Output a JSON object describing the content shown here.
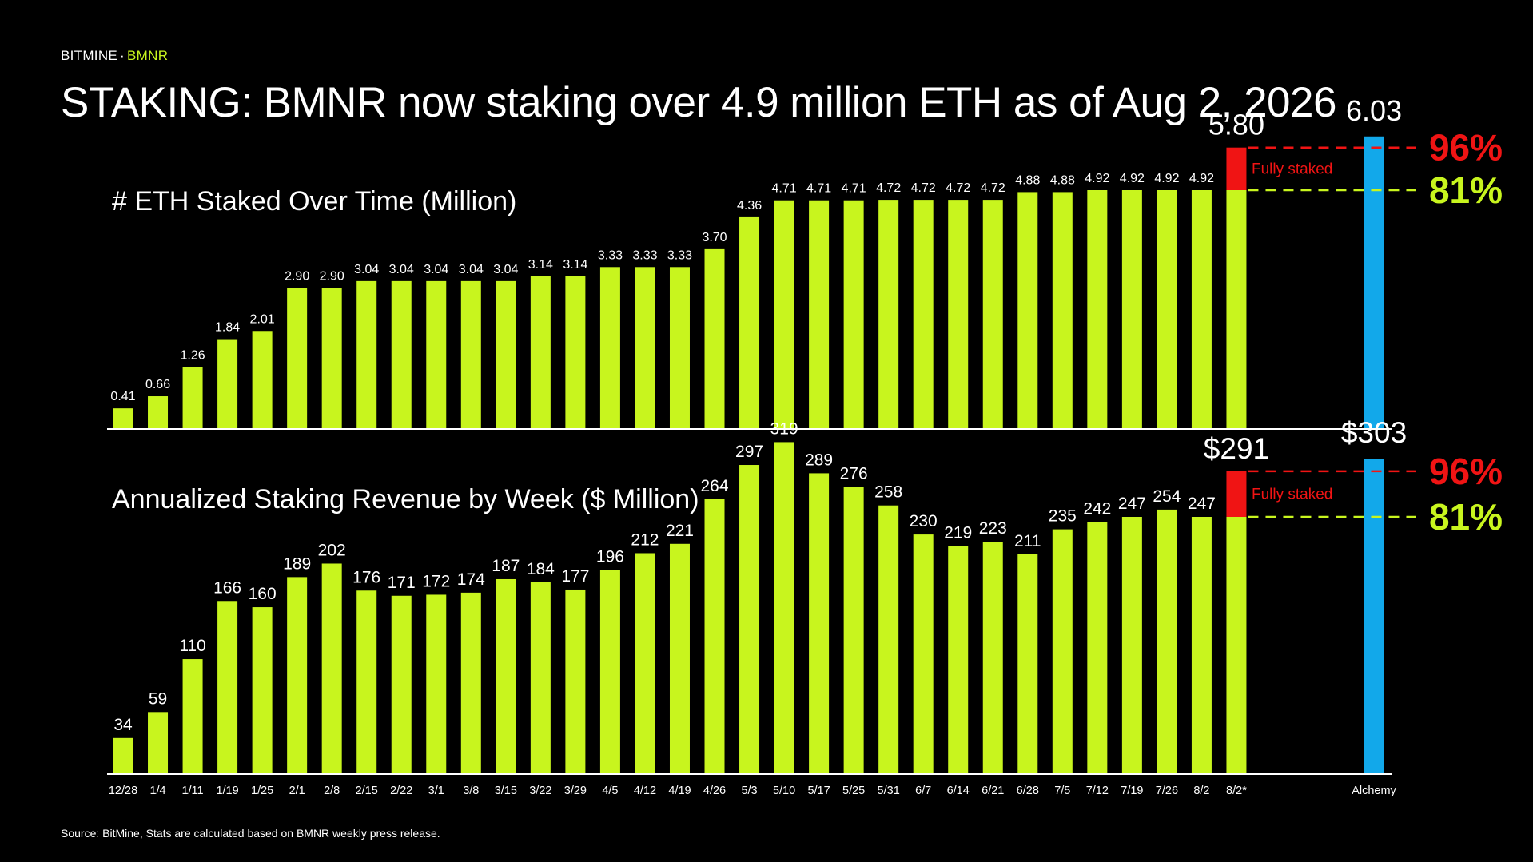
{
  "header": {
    "brand": "BITMINE",
    "separator": "·",
    "ticker": "BMNR",
    "title": "STAKING: BMNR now staking over 4.9 million ETH as of Aug 2, 2026"
  },
  "footer": {
    "source": "Source: BitMine, Stats are calculated based on BMNR weekly press release."
  },
  "colors": {
    "bar": "#c8f51e",
    "fully_staked": "#f01414",
    "alchemy": "#12a8ea",
    "text": "#ffffff",
    "background": "#000000"
  },
  "chart_data": [
    {
      "type": "bar",
      "title": "# ETH Staked Over Time (Million)",
      "categories": [
        "12/28",
        "1/4",
        "1/11",
        "1/19",
        "1/25",
        "2/1",
        "2/8",
        "2/15",
        "2/22",
        "3/1",
        "3/8",
        "3/15",
        "3/22",
        "3/29",
        "4/5",
        "4/12",
        "4/19",
        "4/26",
        "5/3",
        "5/10",
        "5/17",
        "5/25",
        "5/31",
        "6/7",
        "6/14",
        "6/21",
        "6/28",
        "7/5",
        "7/12",
        "7/19",
        "7/26",
        "8/2",
        "8/2*"
      ],
      "values": [
        0.41,
        0.66,
        1.26,
        1.84,
        2.01,
        2.9,
        2.9,
        3.04,
        3.04,
        3.04,
        3.04,
        3.04,
        3.14,
        3.14,
        3.33,
        3.33,
        3.33,
        3.7,
        4.36,
        4.71,
        4.71,
        4.71,
        4.72,
        4.72,
        4.72,
        4.72,
        4.88,
        4.88,
        4.92,
        4.92,
        4.92,
        4.92,
        4.92
      ],
      "labels": [
        "0.41",
        "0.66",
        "1.26",
        "1.84",
        "2.01",
        "2.90",
        "2.90",
        "3.04",
        "3.04",
        "3.04",
        "3.04",
        "3.04",
        "3.14",
        "3.14",
        "3.33",
        "3.33",
        "3.33",
        "3.70",
        "4.36",
        "4.71",
        "4.71",
        "4.71",
        "4.72",
        "4.72",
        "4.72",
        "4.72",
        "4.88",
        "4.88",
        "4.92",
        "4.92",
        "4.92",
        "4.92",
        ""
      ],
      "fully_staked": {
        "total": 5.8,
        "total_label": "5.80",
        "label": "Fully staked"
      },
      "alchemy": {
        "category": "Alchemy",
        "value": 6.03,
        "label": "6.03"
      },
      "reference_lines": [
        {
          "label": "96%",
          "value": 5.8,
          "color": "#f01414"
        },
        {
          "label": "81%",
          "value": 4.92,
          "color": "#c8f51e"
        }
      ],
      "ylim": [
        0,
        6.5
      ]
    },
    {
      "type": "bar",
      "title": "Annualized Staking Revenue by Week ($ Million)",
      "categories": [
        "12/28",
        "1/4",
        "1/11",
        "1/19",
        "1/25",
        "2/1",
        "2/8",
        "2/15",
        "2/22",
        "3/1",
        "3/8",
        "3/15",
        "3/22",
        "3/29",
        "4/5",
        "4/12",
        "4/19",
        "4/26",
        "5/3",
        "5/10",
        "5/17",
        "5/25",
        "5/31",
        "6/7",
        "6/14",
        "6/21",
        "6/28",
        "7/5",
        "7/12",
        "7/19",
        "7/26",
        "8/2",
        "8/2*"
      ],
      "values": [
        34,
        59,
        110,
        166,
        160,
        189,
        202,
        176,
        171,
        172,
        174,
        187,
        184,
        177,
        196,
        212,
        221,
        264,
        297,
        319,
        289,
        276,
        258,
        230,
        219,
        223,
        211,
        235,
        242,
        247,
        254,
        247,
        247
      ],
      "labels": [
        "34",
        "59",
        "110",
        "166",
        "160",
        "189",
        "202",
        "176",
        "171",
        "172",
        "174",
        "187",
        "184",
        "177",
        "196",
        "212",
        "221",
        "264",
        "297",
        "319",
        "289",
        "276",
        "258",
        "230",
        "219",
        "223",
        "211",
        "235",
        "242",
        "247",
        "254",
        "247",
        ""
      ],
      "fully_staked": {
        "total": 291,
        "total_label": "$291",
        "label": "Fully staked"
      },
      "alchemy": {
        "category": "Alchemy",
        "value": 303,
        "label": "$303"
      },
      "reference_lines": [
        {
          "label": "96%",
          "value": 291,
          "color": "#f01414"
        },
        {
          "label": "81%",
          "value": 247,
          "color": "#c8f51e"
        }
      ],
      "ylim": [
        0,
        330
      ]
    }
  ]
}
